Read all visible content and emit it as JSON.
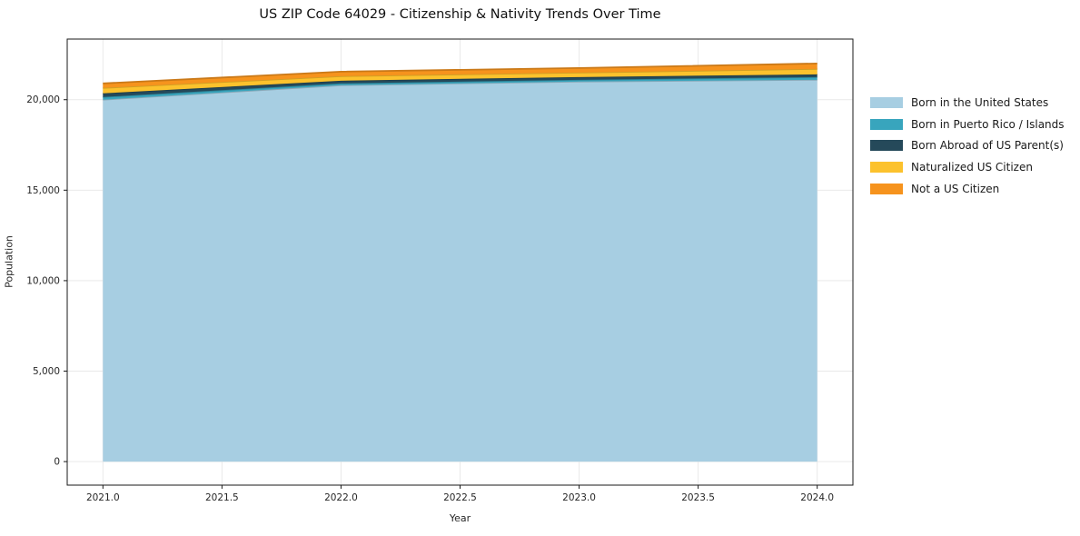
{
  "chart_data": {
    "type": "area",
    "stacked": true,
    "title": "US ZIP Code 64029 - Citizenship & Nativity Trends Over Time",
    "xlabel": "Year",
    "ylabel": "Population",
    "x": [
      2021,
      2022,
      2023,
      2024
    ],
    "series": [
      {
        "name": "Born in the United States",
        "color": "#a7cee2",
        "values": [
          20000,
          20800,
          21000,
          21100
        ]
      },
      {
        "name": "Born in Puerto Rico / Islands",
        "color": "#38a5bd",
        "values": [
          150,
          100,
          100,
          150
        ]
      },
      {
        "name": "Born Abroad of US Parent(s)",
        "color": "#25495a",
        "values": [
          200,
          150,
          150,
          150
        ]
      },
      {
        "name": "Naturalized US Citizen",
        "color": "#fcc22d",
        "values": [
          300,
          250,
          250,
          300
        ]
      },
      {
        "name": "Not a US Citizen",
        "color": "#f6931d",
        "values": [
          250,
          250,
          250,
          300
        ]
      }
    ],
    "xticks": {
      "values": [
        2021,
        2021.5,
        2022,
        2022.5,
        2023,
        2023.5,
        2024
      ],
      "labels": [
        "2021.0",
        "2021.5",
        "2022.0",
        "2022.5",
        "2023.0",
        "2023.5",
        "2024.0"
      ]
    },
    "yticks": {
      "values": [
        0,
        5000,
        10000,
        15000,
        20000
      ],
      "labels": [
        "0",
        "5,000",
        "10,000",
        "15,000",
        "20,000"
      ]
    },
    "xlim": [
      2020.85,
      2024.15
    ],
    "ylim": [
      -1300,
      23350
    ],
    "grid": true,
    "grid_color": "#e9e9e9",
    "frame_color": "#1a1a1a",
    "legend_position": "right-outside"
  }
}
